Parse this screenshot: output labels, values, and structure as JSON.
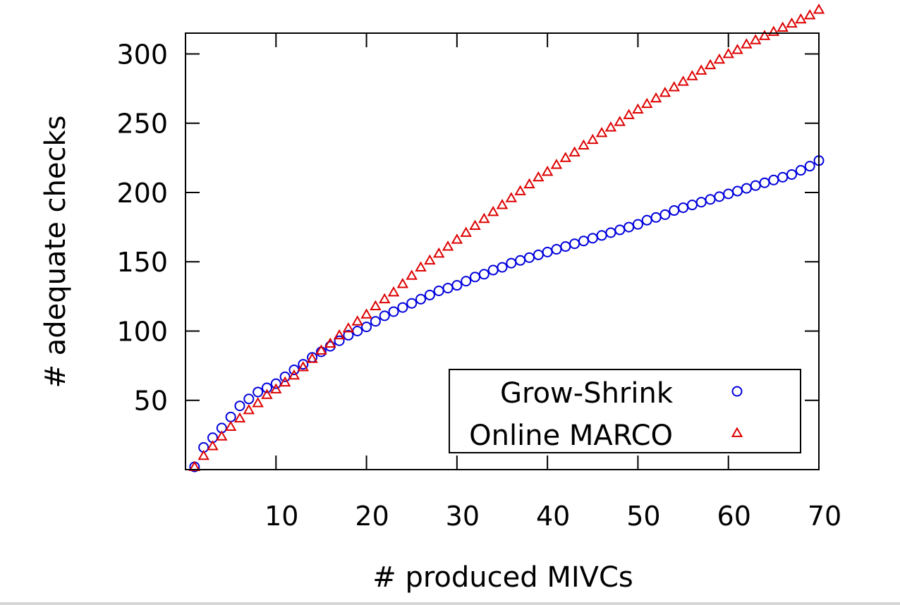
{
  "chart_data": {
    "type": "scatter",
    "xlabel": "# produced MIVCs",
    "ylabel": "# adequate checks",
    "xlim": [
      0,
      70
    ],
    "ylim": [
      0,
      315
    ],
    "xticks": [
      10,
      20,
      30,
      40,
      50,
      60,
      70
    ],
    "yticks": [
      50,
      100,
      150,
      200,
      250,
      300
    ],
    "grid": false,
    "legend_position": "bottom-right",
    "series": [
      {
        "name": "Grow-Shrink",
        "marker": "circle",
        "color": "#0000dd",
        "x": [
          1,
          2,
          3,
          4,
          5,
          6,
          7,
          8,
          9,
          10,
          11,
          12,
          13,
          14,
          15,
          16,
          17,
          18,
          19,
          20,
          21,
          22,
          23,
          24,
          25,
          26,
          27,
          28,
          29,
          30,
          31,
          32,
          33,
          34,
          35,
          36,
          37,
          38,
          39,
          40,
          41,
          42,
          43,
          44,
          45,
          46,
          47,
          48,
          49,
          50,
          51,
          52,
          53,
          54,
          55,
          56,
          57,
          58,
          59,
          60,
          61,
          62,
          63,
          64,
          65,
          66,
          67,
          68,
          69,
          70
        ],
        "y": [
          2,
          16,
          23,
          30,
          38,
          46,
          51,
          56,
          59,
          62,
          67,
          72,
          76,
          81,
          85,
          89,
          93,
          97,
          100,
          103,
          107,
          111,
          114,
          117,
          120,
          123,
          126,
          129,
          131,
          133,
          136,
          139,
          141,
          144,
          146,
          149,
          151,
          153,
          155,
          157,
          159,
          161,
          163,
          165,
          167,
          169,
          171,
          173,
          175,
          177,
          180,
          182,
          184,
          187,
          189,
          191,
          193,
          195,
          197,
          199,
          201,
          203,
          205,
          207,
          209,
          211,
          213,
          216,
          219,
          223
        ]
      },
      {
        "name": "Online MARCO",
        "marker": "triangle",
        "color": "#dd0000",
        "x": [
          1,
          2,
          3,
          4,
          5,
          6,
          7,
          8,
          9,
          10,
          11,
          12,
          13,
          14,
          15,
          16,
          17,
          18,
          19,
          20,
          21,
          22,
          23,
          24,
          25,
          26,
          27,
          28,
          29,
          30,
          31,
          32,
          33,
          34,
          35,
          36,
          37,
          38,
          39,
          40,
          41,
          42,
          43,
          44,
          45,
          46,
          47,
          48,
          49,
          50,
          51,
          52,
          53,
          54,
          55,
          56,
          57,
          58,
          59,
          60,
          61,
          62,
          63,
          64,
          65,
          66,
          67,
          68,
          69,
          70
        ],
        "y": [
          2,
          10,
          17,
          24,
          31,
          37,
          43,
          48,
          54,
          58,
          63,
          68,
          74,
          80,
          86,
          91,
          97,
          102,
          107,
          112,
          118,
          123,
          128,
          134,
          140,
          146,
          151,
          156,
          161,
          166,
          171,
          176,
          181,
          186,
          191,
          196,
          201,
          206,
          211,
          215,
          220,
          225,
          229,
          234,
          238,
          243,
          247,
          251,
          256,
          260,
          264,
          268,
          272,
          276,
          280,
          284,
          288,
          292,
          296,
          300,
          303,
          307,
          310,
          313,
          316,
          319,
          322,
          325,
          328,
          332
        ]
      }
    ]
  }
}
